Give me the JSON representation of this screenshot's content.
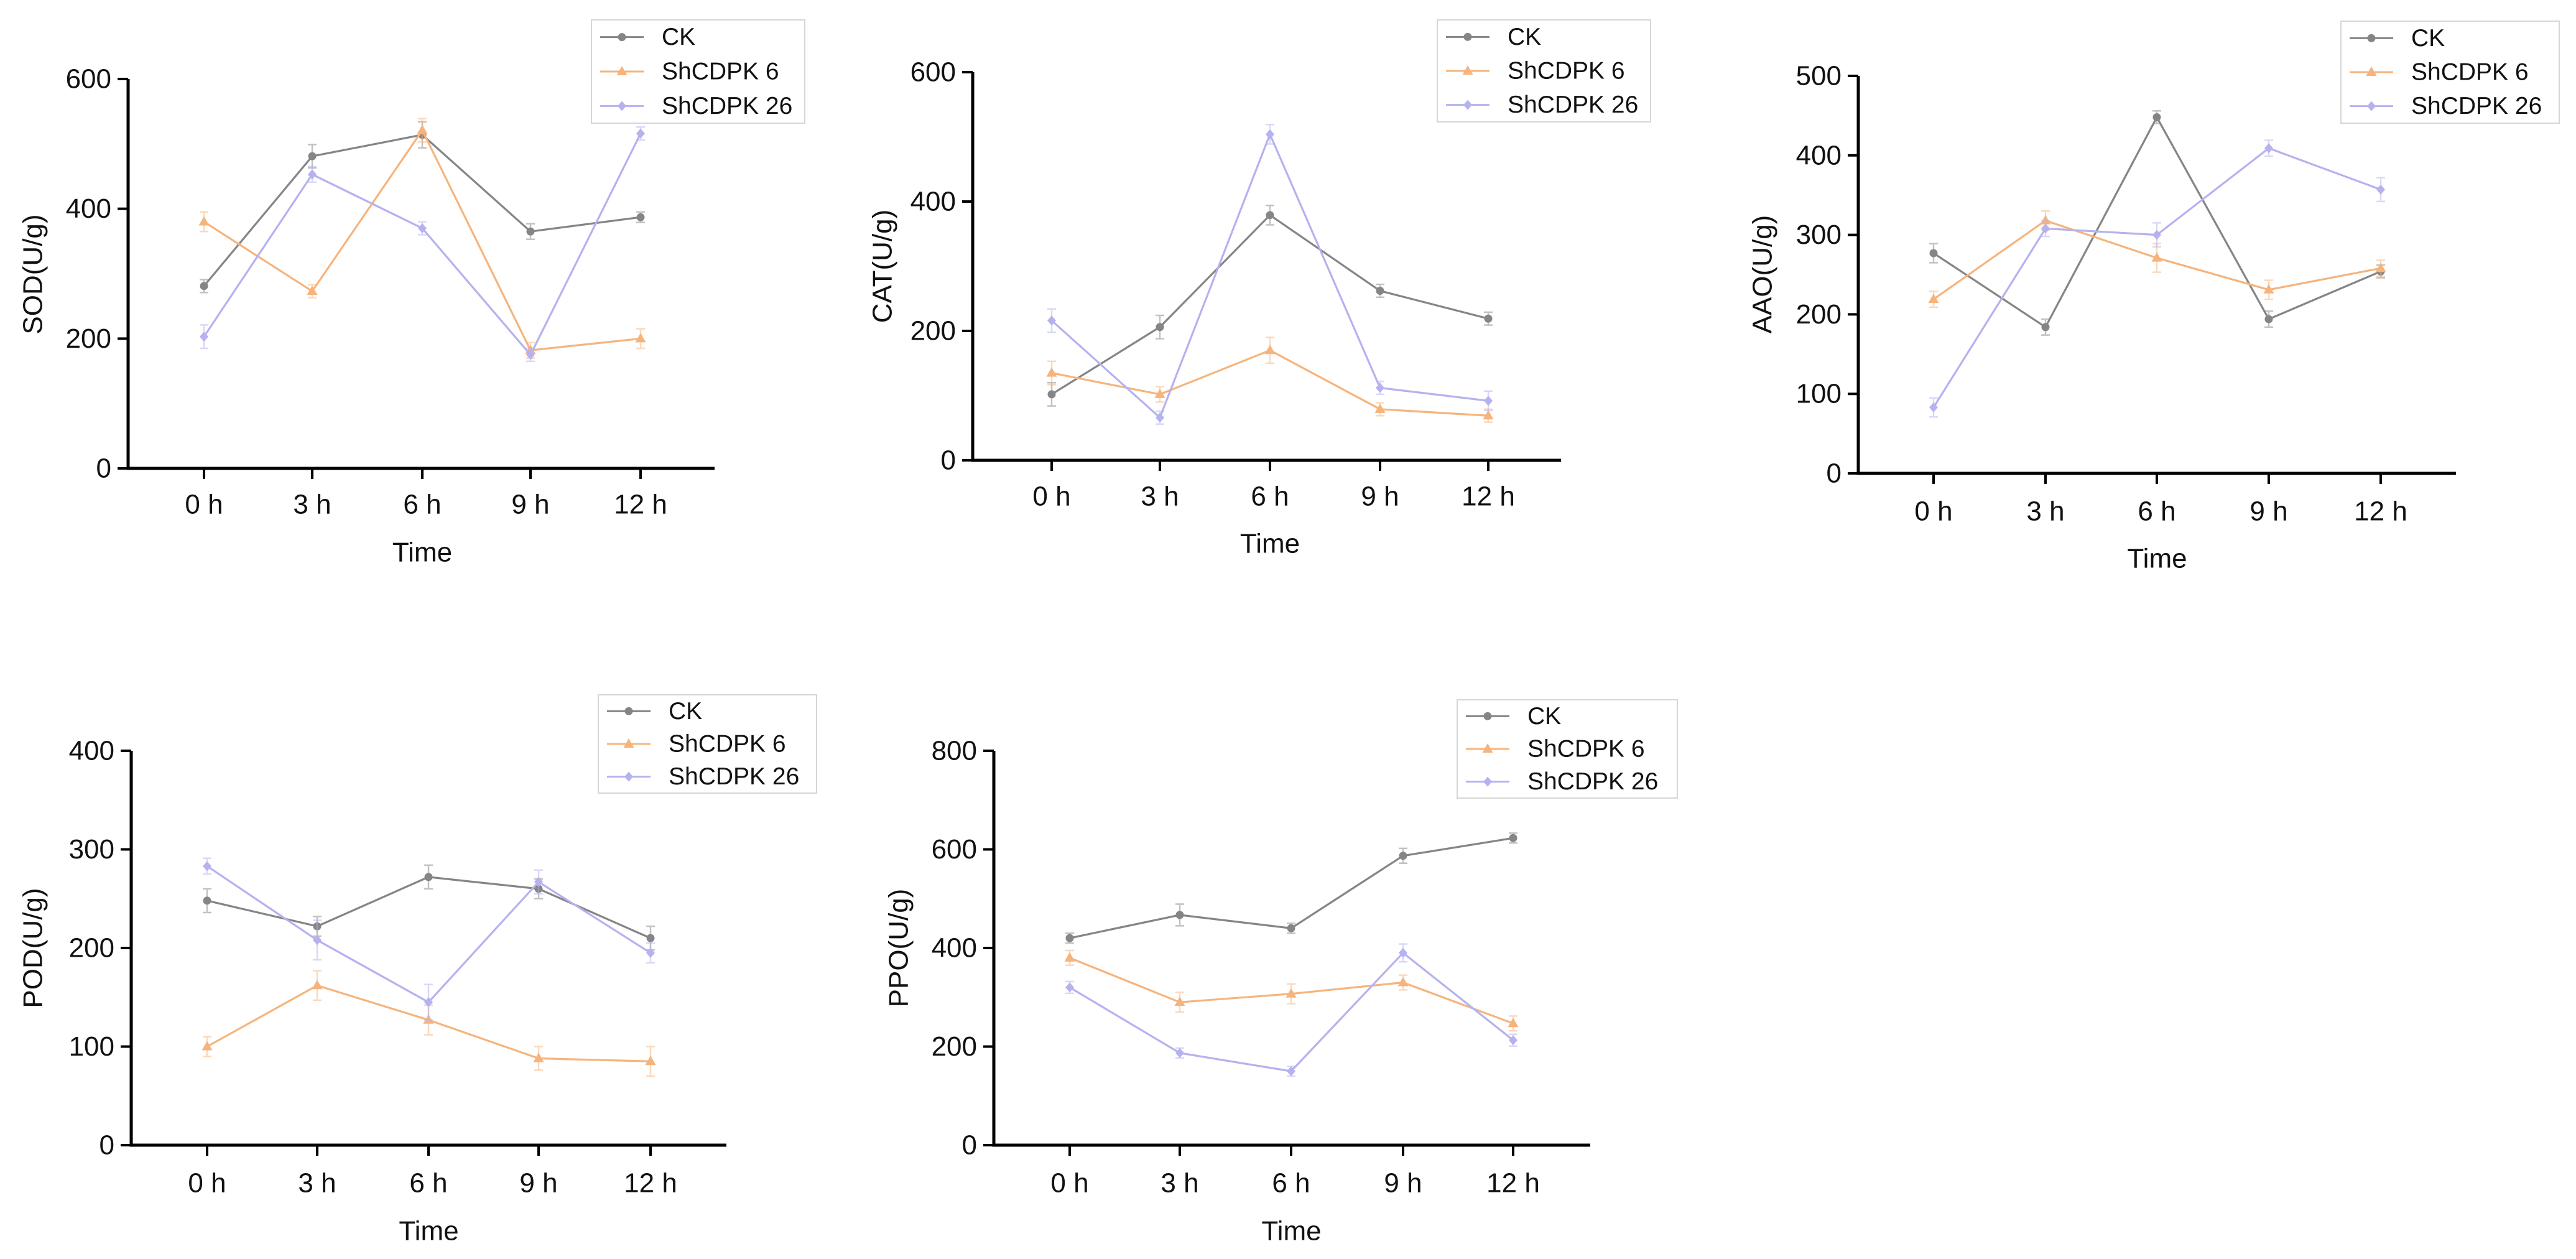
{
  "chart_data": [
    {
      "type": "line",
      "xlabel": "Time",
      "ylabel": "SOD(U/g)",
      "categories": [
        "0 h",
        "3 h",
        "6 h",
        "9 h",
        "12 h"
      ],
      "ylim": [
        0,
        600
      ],
      "yticks": [
        0,
        200,
        400,
        600
      ],
      "grid": false,
      "legend_position": "top-right",
      "series": [
        {
          "name": "CK",
          "values": [
            281,
            481,
            514,
            365,
            387
          ],
          "errors": [
            10,
            18,
            20,
            12,
            8
          ],
          "color": "#858585",
          "marker": "circle"
        },
        {
          "name": "ShCDPK 6",
          "values": [
            380,
            273,
            521,
            182,
            200
          ],
          "errors": [
            15,
            10,
            18,
            12,
            15
          ],
          "color": "#f6b47c",
          "marker": "triangle"
        },
        {
          "name": "ShCDPK 26",
          "values": [
            203,
            453,
            370,
            175,
            516
          ],
          "errors": [
            18,
            12,
            10,
            10,
            10
          ],
          "color": "#b5b2ef",
          "marker": "diamond"
        }
      ]
    },
    {
      "type": "line",
      "xlabel": "Time",
      "ylabel": "CAT(U/g)",
      "categories": [
        "0 h",
        "3 h",
        "6 h",
        "9 h",
        "12 h"
      ],
      "ylim": [
        0,
        600
      ],
      "yticks": [
        0,
        200,
        400,
        600
      ],
      "grid": false,
      "legend_position": "top-right",
      "series": [
        {
          "name": "CK",
          "values": [
            102,
            206,
            379,
            262,
            219
          ],
          "errors": [
            18,
            18,
            15,
            10,
            10
          ],
          "color": "#858585",
          "marker": "circle"
        },
        {
          "name": "ShCDPK 6",
          "values": [
            135,
            102,
            170,
            79,
            69
          ],
          "errors": [
            18,
            12,
            20,
            10,
            10
          ],
          "color": "#f6b47c",
          "marker": "triangle"
        },
        {
          "name": "ShCDPK 26",
          "values": [
            216,
            66,
            504,
            112,
            92
          ],
          "errors": [
            18,
            10,
            15,
            10,
            15
          ],
          "color": "#b5b2ef",
          "marker": "diamond"
        }
      ]
    },
    {
      "type": "line",
      "xlabel": "Time",
      "ylabel": "AAO(U/g)",
      "categories": [
        "0 h",
        "3 h",
        "6 h",
        "9 h",
        "12 h"
      ],
      "ylim": [
        0,
        500
      ],
      "yticks": [
        0,
        100,
        200,
        300,
        400,
        500
      ],
      "grid": false,
      "legend_position": "top-right",
      "series": [
        {
          "name": "CK",
          "values": [
            277,
            184,
            448,
            194,
            254
          ],
          "errors": [
            12,
            10,
            8,
            10,
            8
          ],
          "color": "#858585",
          "marker": "circle"
        },
        {
          "name": "ShCDPK 6",
          "values": [
            219,
            318,
            271,
            231,
            258
          ],
          "errors": [
            10,
            12,
            18,
            12,
            10
          ],
          "color": "#f6b47c",
          "marker": "triangle"
        },
        {
          "name": "ShCDPK 26",
          "values": [
            83,
            308,
            300,
            409,
            357
          ],
          "errors": [
            12,
            10,
            15,
            10,
            15
          ],
          "color": "#b5b2ef",
          "marker": "diamond"
        }
      ]
    },
    {
      "type": "line",
      "xlabel": "Time",
      "ylabel": "POD(U/g)",
      "categories": [
        "0 h",
        "3 h",
        "6 h",
        "9 h",
        "12 h"
      ],
      "ylim": [
        0,
        400
      ],
      "yticks": [
        0,
        100,
        200,
        300,
        400
      ],
      "grid": false,
      "legend_position": "top-right",
      "series": [
        {
          "name": "CK",
          "values": [
            248,
            222,
            272,
            260,
            210
          ],
          "errors": [
            12,
            10,
            12,
            10,
            12
          ],
          "color": "#858585",
          "marker": "circle"
        },
        {
          "name": "ShCDPK 6",
          "values": [
            100,
            162,
            127,
            88,
            85
          ],
          "errors": [
            10,
            15,
            15,
            12,
            15
          ],
          "color": "#f6b47c",
          "marker": "triangle"
        },
        {
          "name": "ShCDPK 26",
          "values": [
            283,
            208,
            145,
            267,
            195
          ],
          "errors": [
            8,
            20,
            18,
            12,
            10
          ],
          "color": "#b5b2ef",
          "marker": "diamond"
        }
      ]
    },
    {
      "type": "line",
      "xlabel": "Time",
      "ylabel": "PPO(U/g)",
      "categories": [
        "0 h",
        "3 h",
        "6 h",
        "9 h",
        "12 h"
      ],
      "ylim": [
        0,
        800
      ],
      "yticks": [
        0,
        200,
        400,
        600,
        800
      ],
      "grid": false,
      "legend_position": "top-right",
      "series": [
        {
          "name": "CK",
          "values": [
            420,
            467,
            440,
            587,
            623
          ],
          "errors": [
            10,
            22,
            10,
            15,
            10
          ],
          "color": "#858585",
          "marker": "circle"
        },
        {
          "name": "ShCDPK 6",
          "values": [
            380,
            290,
            307,
            330,
            247
          ],
          "errors": [
            15,
            20,
            20,
            15,
            15
          ],
          "color": "#f6b47c",
          "marker": "triangle"
        },
        {
          "name": "ShCDPK 26",
          "values": [
            320,
            187,
            150,
            390,
            213
          ],
          "errors": [
            12,
            10,
            10,
            18,
            12
          ],
          "color": "#b5b2ef",
          "marker": "diamond"
        }
      ]
    }
  ]
}
